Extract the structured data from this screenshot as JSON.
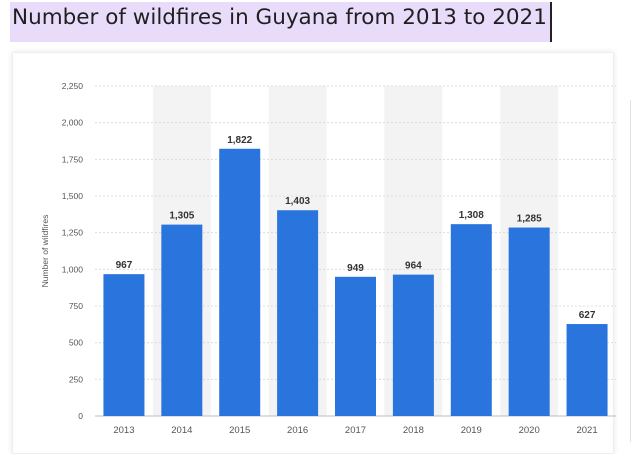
{
  "page": {
    "title": "Number of wildfires in Guyana from 2013 to 2021"
  },
  "colors": {
    "bar": "#2a74dd",
    "band": "#f3f3f3",
    "grid": "#dcdcdc",
    "tick_text": "#555555",
    "value_text": "#333333",
    "title_highlight": "#e9dcfb"
  },
  "chart_data": {
    "type": "bar",
    "categories": [
      "2013",
      "2014",
      "2015",
      "2016",
      "2017",
      "2018",
      "2019",
      "2020",
      "2021"
    ],
    "values": [
      967,
      1305,
      1822,
      1403,
      949,
      964,
      1308,
      1285,
      627
    ],
    "value_labels": [
      "967",
      "1,305",
      "1,822",
      "1,403",
      "949",
      "964",
      "1,308",
      "1,285",
      "627"
    ],
    "title": "Number of wildfires in Guyana from 2013 to 2021",
    "xlabel": "",
    "ylabel": "Number of wildfires",
    "ylim": [
      0,
      2250
    ],
    "yticks": [
      0,
      250,
      500,
      750,
      1000,
      1250,
      1500,
      1750,
      2000,
      2250
    ],
    "ytick_labels": [
      "0",
      "250",
      "500",
      "750",
      "1,000",
      "1,250",
      "1,500",
      "1,750",
      "2,000",
      "2,250"
    ],
    "grid": true,
    "legend": "none"
  }
}
